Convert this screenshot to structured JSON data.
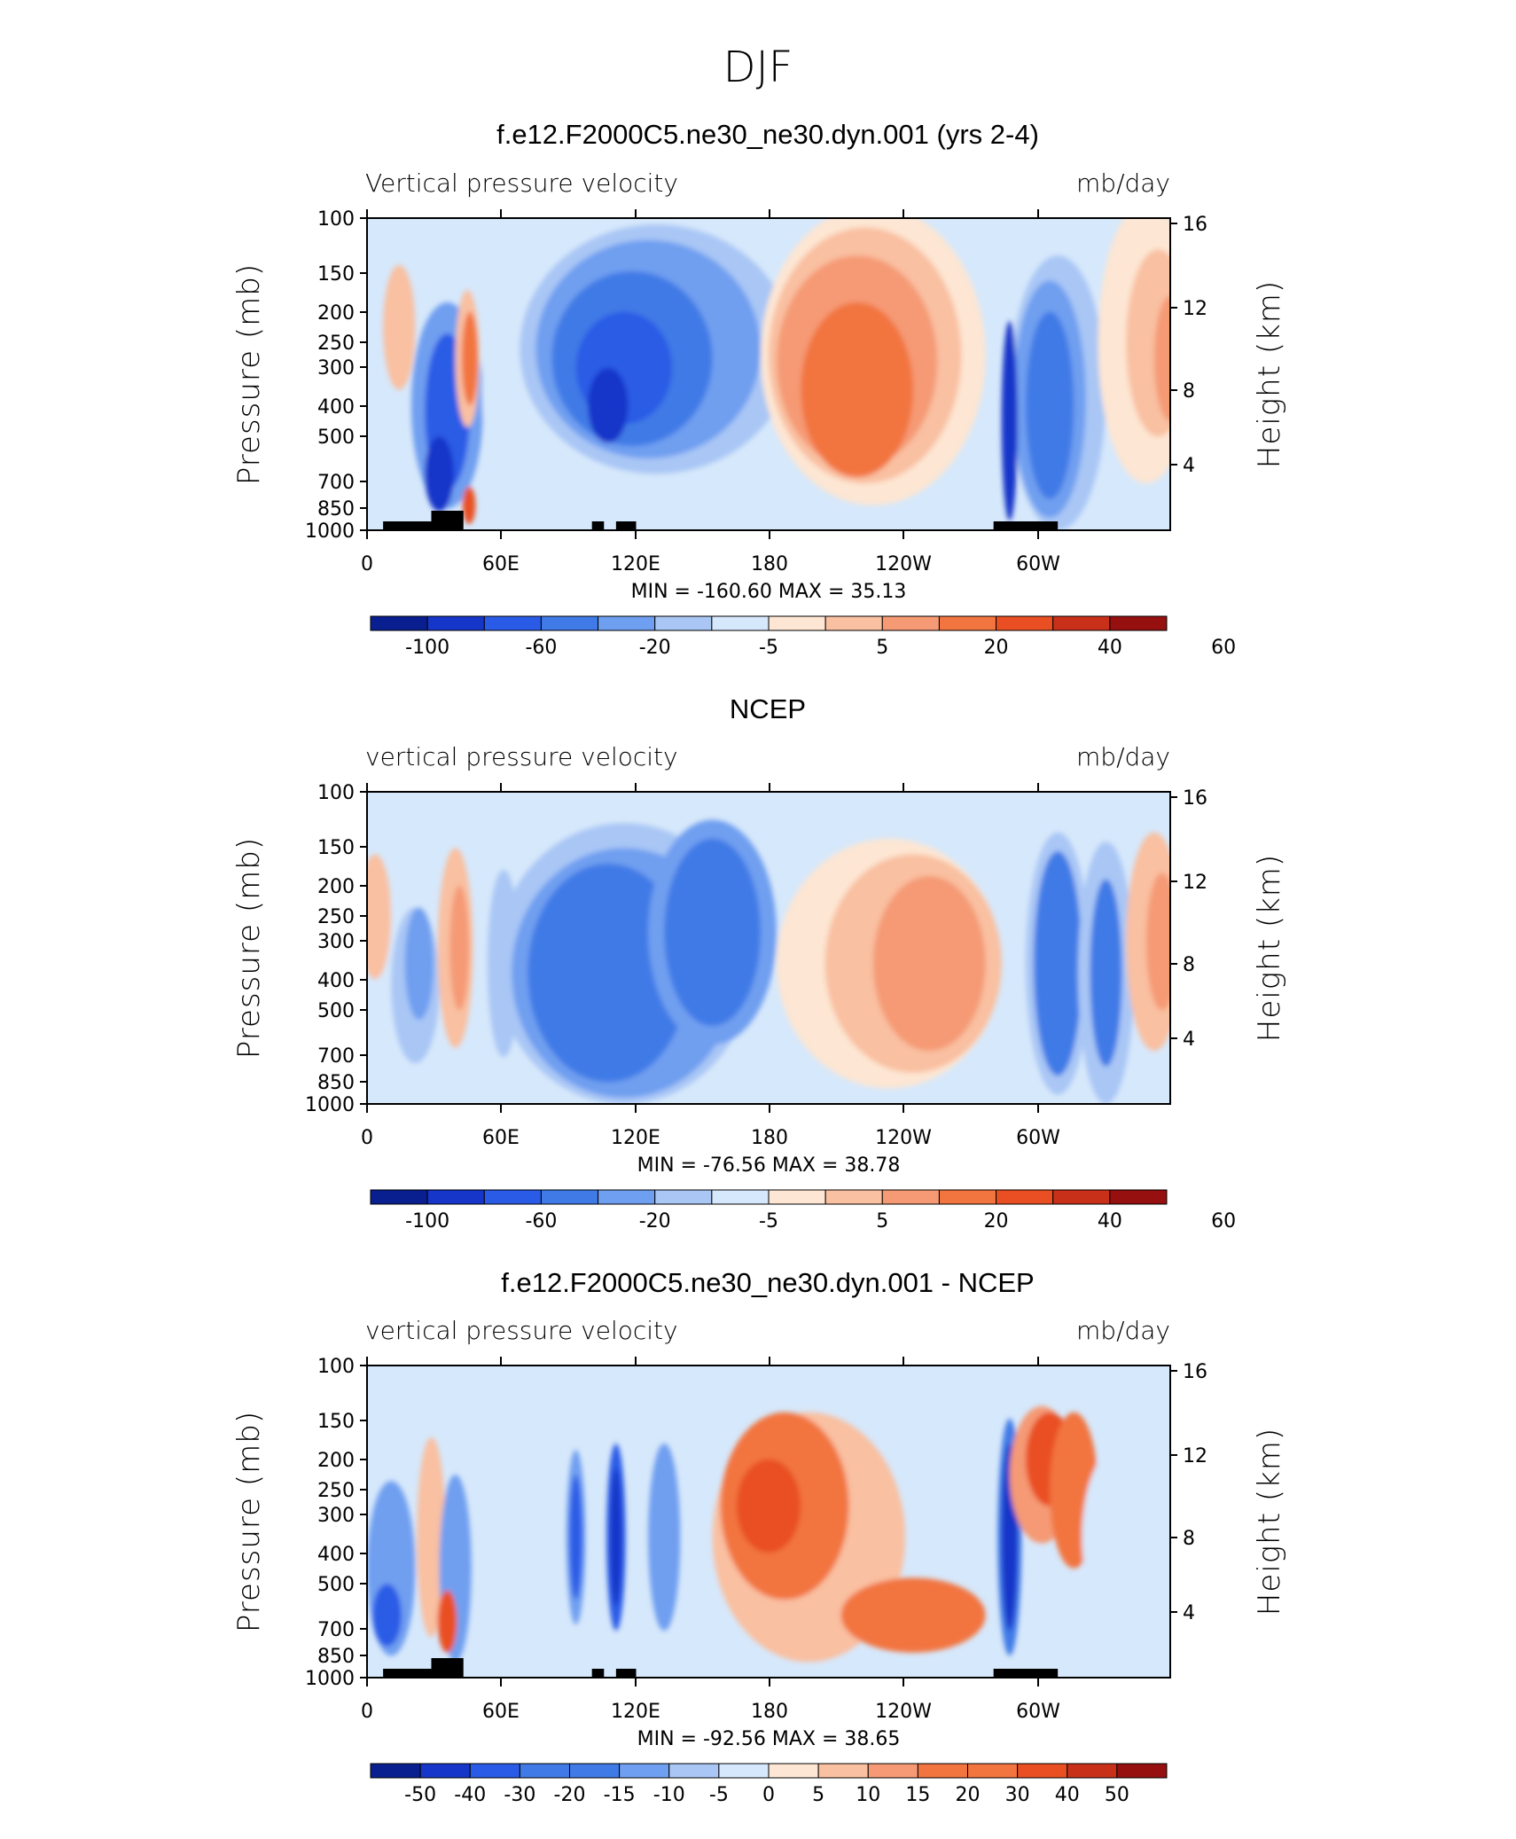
{
  "chart_data": {
    "type": "heatmap",
    "suptitle": "DJF",
    "x_ticks": [
      "0",
      "60E",
      "120E",
      "180",
      "120W",
      "60W"
    ],
    "y_ticks_pressure": [
      "100",
      "150",
      "200",
      "250",
      "300",
      "400",
      "500",
      "700",
      "850",
      "1000"
    ],
    "y_ticks_height": [
      "16",
      "12",
      "8",
      "4"
    ],
    "ylabel_left": "Pressure (mb)",
    "ylabel_right": "Height (km)",
    "panels": [
      {
        "title": "f.e12.F2000C5.ne30_ne30.dyn.001 (yrs 2-4)",
        "left_label": "Vertical pressure velocity",
        "right_label": "mb/day",
        "minmax": "MIN = -160.60   MAX =   35.13",
        "colorbar_levels": [
          "-100",
          "-60",
          "-20",
          "-5",
          "5",
          "20",
          "40",
          "60"
        ]
      },
      {
        "title": "NCEP",
        "left_label": "vertical pressure velocity",
        "right_label": "mb/day",
        "minmax": "MIN = -76.56   MAX =   38.78",
        "colorbar_levels": [
          "-100",
          "-60",
          "-20",
          "-5",
          "5",
          "20",
          "40",
          "60"
        ]
      },
      {
        "title": "f.e12.F2000C5.ne30_ne30.dyn.001 - NCEP",
        "left_label": "vertical pressure velocity",
        "right_label": "mb/day",
        "minmax": "MIN = -92.56   MAX =   38.65",
        "colorbar_levels": [
          "-50",
          "-40",
          "-30",
          "-20",
          "-15",
          "-10",
          "-5",
          "0",
          "5",
          "10",
          "15",
          "20",
          "30",
          "40",
          "50"
        ]
      }
    ],
    "palette": [
      "#0a1f8f",
      "#1536c9",
      "#2a5be6",
      "#3f7ae6",
      "#6f9ff0",
      "#a9c6f5",
      "#d6e8fb",
      "#fde6d3",
      "#f9c0a1",
      "#f59a74",
      "#f2743f",
      "#e94f22",
      "#c9301a",
      "#961010"
    ]
  }
}
